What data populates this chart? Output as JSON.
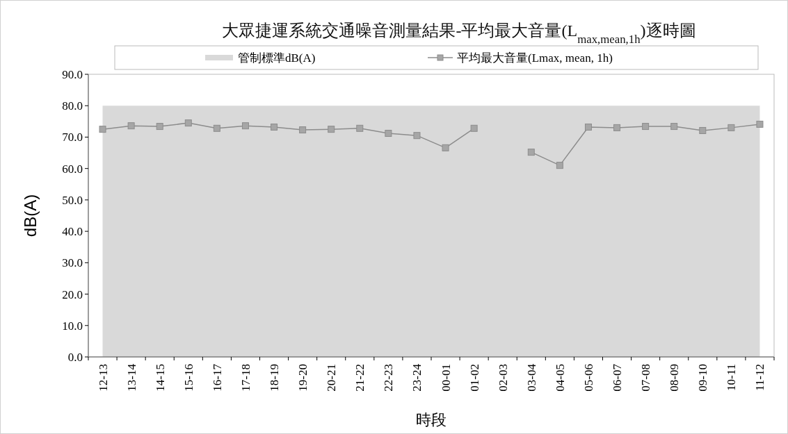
{
  "chart_data": {
    "type": "line",
    "title": "大眾捷運系統交通噪音測量結果-平均最大音量(L$_{max,mean,1h}$)逐時圖",
    "xlabel": "時段",
    "ylabel": "dB(A)",
    "categories": [
      "12-13",
      "13-14",
      "14-15",
      "15-16",
      "16-17",
      "17-18",
      "18-19",
      "19-20",
      "20-21",
      "21-22",
      "22-23",
      "23-24",
      "00-01",
      "01-02",
      "02-03",
      "03-04",
      "04-05",
      "05-06",
      "06-07",
      "07-08",
      "08-09",
      "09-10",
      "10-11",
      "11-12"
    ],
    "series": [
      {
        "name": "管制標準dB(A)",
        "type": "area",
        "color": "#d9d9d9",
        "values": [
          80,
          80,
          80,
          80,
          80,
          80,
          80,
          80,
          80,
          80,
          80,
          80,
          80,
          80,
          80,
          80,
          80,
          80,
          80,
          80,
          80,
          80,
          80,
          80
        ]
      },
      {
        "name": "平均最大音量(Lmax, mean, 1h)",
        "color": "#8c8c8c",
        "marker": "square",
        "values": [
          72.5,
          73.6,
          73.4,
          74.5,
          72.8,
          73.6,
          73.2,
          72.3,
          72.5,
          72.8,
          71.2,
          70.5,
          66.6,
          72.8,
          null,
          65.2,
          61.0,
          73.2,
          73.0,
          73.4,
          73.4,
          72.1,
          73.0,
          74.1
        ]
      }
    ],
    "ylim": [
      0,
      90
    ],
    "yticks": [
      {
        "value": 0,
        "label": "0.0"
      },
      {
        "value": 10,
        "label": "10.0"
      },
      {
        "value": 20,
        "label": "20.0"
      },
      {
        "value": 30,
        "label": "30.0"
      },
      {
        "value": 40,
        "label": "40.0"
      },
      {
        "value": 50,
        "label": "50.0"
      },
      {
        "value": 60,
        "label": "60.0"
      },
      {
        "value": 70,
        "label": "70.0"
      },
      {
        "value": 80,
        "label": "80.0"
      },
      {
        "value": 90,
        "label": "90.0"
      }
    ],
    "grid": false,
    "legend": "top"
  }
}
